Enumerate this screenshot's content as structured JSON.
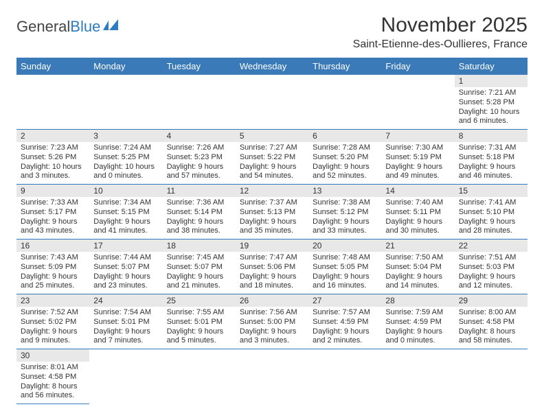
{
  "logo": {
    "text_a": "General",
    "text_b": "Blue"
  },
  "title": "November 2025",
  "location": "Saint-Etienne-des-Oullieres, France",
  "colors": {
    "header_bg": "#3a7ab8",
    "header_text": "#ffffff",
    "row_divider": "#2f7bbf",
    "daynum_bg": "#e8e8e8",
    "page_bg": "#ffffff",
    "body_text": "#333333"
  },
  "day_headers": [
    "Sunday",
    "Monday",
    "Tuesday",
    "Wednesday",
    "Thursday",
    "Friday",
    "Saturday"
  ],
  "weeks": [
    [
      {
        "day": "",
        "sunrise": "",
        "sunset": "",
        "daylight": ""
      },
      {
        "day": "",
        "sunrise": "",
        "sunset": "",
        "daylight": ""
      },
      {
        "day": "",
        "sunrise": "",
        "sunset": "",
        "daylight": ""
      },
      {
        "day": "",
        "sunrise": "",
        "sunset": "",
        "daylight": ""
      },
      {
        "day": "",
        "sunrise": "",
        "sunset": "",
        "daylight": ""
      },
      {
        "day": "",
        "sunrise": "",
        "sunset": "",
        "daylight": ""
      },
      {
        "day": "1",
        "sunrise": "Sunrise: 7:21 AM",
        "sunset": "Sunset: 5:28 PM",
        "daylight": "Daylight: 10 hours and 6 minutes."
      }
    ],
    [
      {
        "day": "2",
        "sunrise": "Sunrise: 7:23 AM",
        "sunset": "Sunset: 5:26 PM",
        "daylight": "Daylight: 10 hours and 3 minutes."
      },
      {
        "day": "3",
        "sunrise": "Sunrise: 7:24 AM",
        "sunset": "Sunset: 5:25 PM",
        "daylight": "Daylight: 10 hours and 0 minutes."
      },
      {
        "day": "4",
        "sunrise": "Sunrise: 7:26 AM",
        "sunset": "Sunset: 5:23 PM",
        "daylight": "Daylight: 9 hours and 57 minutes."
      },
      {
        "day": "5",
        "sunrise": "Sunrise: 7:27 AM",
        "sunset": "Sunset: 5:22 PM",
        "daylight": "Daylight: 9 hours and 54 minutes."
      },
      {
        "day": "6",
        "sunrise": "Sunrise: 7:28 AM",
        "sunset": "Sunset: 5:20 PM",
        "daylight": "Daylight: 9 hours and 52 minutes."
      },
      {
        "day": "7",
        "sunrise": "Sunrise: 7:30 AM",
        "sunset": "Sunset: 5:19 PM",
        "daylight": "Daylight: 9 hours and 49 minutes."
      },
      {
        "day": "8",
        "sunrise": "Sunrise: 7:31 AM",
        "sunset": "Sunset: 5:18 PM",
        "daylight": "Daylight: 9 hours and 46 minutes."
      }
    ],
    [
      {
        "day": "9",
        "sunrise": "Sunrise: 7:33 AM",
        "sunset": "Sunset: 5:17 PM",
        "daylight": "Daylight: 9 hours and 43 minutes."
      },
      {
        "day": "10",
        "sunrise": "Sunrise: 7:34 AM",
        "sunset": "Sunset: 5:15 PM",
        "daylight": "Daylight: 9 hours and 41 minutes."
      },
      {
        "day": "11",
        "sunrise": "Sunrise: 7:36 AM",
        "sunset": "Sunset: 5:14 PM",
        "daylight": "Daylight: 9 hours and 38 minutes."
      },
      {
        "day": "12",
        "sunrise": "Sunrise: 7:37 AM",
        "sunset": "Sunset: 5:13 PM",
        "daylight": "Daylight: 9 hours and 35 minutes."
      },
      {
        "day": "13",
        "sunrise": "Sunrise: 7:38 AM",
        "sunset": "Sunset: 5:12 PM",
        "daylight": "Daylight: 9 hours and 33 minutes."
      },
      {
        "day": "14",
        "sunrise": "Sunrise: 7:40 AM",
        "sunset": "Sunset: 5:11 PM",
        "daylight": "Daylight: 9 hours and 30 minutes."
      },
      {
        "day": "15",
        "sunrise": "Sunrise: 7:41 AM",
        "sunset": "Sunset: 5:10 PM",
        "daylight": "Daylight: 9 hours and 28 minutes."
      }
    ],
    [
      {
        "day": "16",
        "sunrise": "Sunrise: 7:43 AM",
        "sunset": "Sunset: 5:09 PM",
        "daylight": "Daylight: 9 hours and 25 minutes."
      },
      {
        "day": "17",
        "sunrise": "Sunrise: 7:44 AM",
        "sunset": "Sunset: 5:07 PM",
        "daylight": "Daylight: 9 hours and 23 minutes."
      },
      {
        "day": "18",
        "sunrise": "Sunrise: 7:45 AM",
        "sunset": "Sunset: 5:07 PM",
        "daylight": "Daylight: 9 hours and 21 minutes."
      },
      {
        "day": "19",
        "sunrise": "Sunrise: 7:47 AM",
        "sunset": "Sunset: 5:06 PM",
        "daylight": "Daylight: 9 hours and 18 minutes."
      },
      {
        "day": "20",
        "sunrise": "Sunrise: 7:48 AM",
        "sunset": "Sunset: 5:05 PM",
        "daylight": "Daylight: 9 hours and 16 minutes."
      },
      {
        "day": "21",
        "sunrise": "Sunrise: 7:50 AM",
        "sunset": "Sunset: 5:04 PM",
        "daylight": "Daylight: 9 hours and 14 minutes."
      },
      {
        "day": "22",
        "sunrise": "Sunrise: 7:51 AM",
        "sunset": "Sunset: 5:03 PM",
        "daylight": "Daylight: 9 hours and 12 minutes."
      }
    ],
    [
      {
        "day": "23",
        "sunrise": "Sunrise: 7:52 AM",
        "sunset": "Sunset: 5:02 PM",
        "daylight": "Daylight: 9 hours and 9 minutes."
      },
      {
        "day": "24",
        "sunrise": "Sunrise: 7:54 AM",
        "sunset": "Sunset: 5:01 PM",
        "daylight": "Daylight: 9 hours and 7 minutes."
      },
      {
        "day": "25",
        "sunrise": "Sunrise: 7:55 AM",
        "sunset": "Sunset: 5:01 PM",
        "daylight": "Daylight: 9 hours and 5 minutes."
      },
      {
        "day": "26",
        "sunrise": "Sunrise: 7:56 AM",
        "sunset": "Sunset: 5:00 PM",
        "daylight": "Daylight: 9 hours and 3 minutes."
      },
      {
        "day": "27",
        "sunrise": "Sunrise: 7:57 AM",
        "sunset": "Sunset: 4:59 PM",
        "daylight": "Daylight: 9 hours and 2 minutes."
      },
      {
        "day": "28",
        "sunrise": "Sunrise: 7:59 AM",
        "sunset": "Sunset: 4:59 PM",
        "daylight": "Daylight: 9 hours and 0 minutes."
      },
      {
        "day": "29",
        "sunrise": "Sunrise: 8:00 AM",
        "sunset": "Sunset: 4:58 PM",
        "daylight": "Daylight: 8 hours and 58 minutes."
      }
    ],
    [
      {
        "day": "30",
        "sunrise": "Sunrise: 8:01 AM",
        "sunset": "Sunset: 4:58 PM",
        "daylight": "Daylight: 8 hours and 56 minutes."
      },
      {
        "day": "",
        "sunrise": "",
        "sunset": "",
        "daylight": ""
      },
      {
        "day": "",
        "sunrise": "",
        "sunset": "",
        "daylight": ""
      },
      {
        "day": "",
        "sunrise": "",
        "sunset": "",
        "daylight": ""
      },
      {
        "day": "",
        "sunrise": "",
        "sunset": "",
        "daylight": ""
      },
      {
        "day": "",
        "sunrise": "",
        "sunset": "",
        "daylight": ""
      },
      {
        "day": "",
        "sunrise": "",
        "sunset": "",
        "daylight": ""
      }
    ]
  ]
}
